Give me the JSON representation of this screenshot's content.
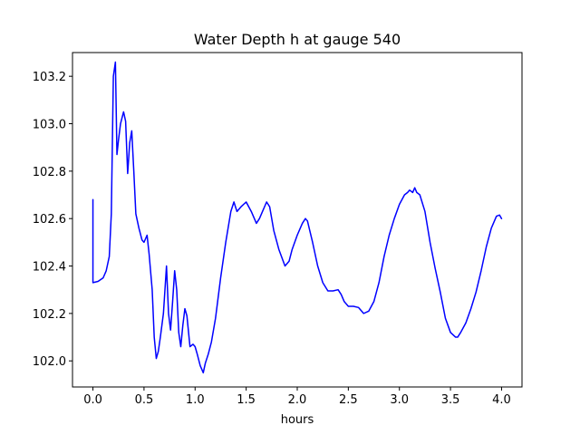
{
  "chart_data": {
    "type": "line",
    "title": "Water Depth h at gauge 540",
    "xlabel": "hours",
    "ylabel": "",
    "xlim": [
      -0.2,
      4.2
    ],
    "ylim": [
      101.89,
      103.3
    ],
    "x_ticks": [
      0.0,
      0.5,
      1.0,
      1.5,
      2.0,
      2.5,
      3.0,
      3.5,
      4.0
    ],
    "x_tick_labels": [
      "0.0",
      "0.5",
      "1.0",
      "1.5",
      "2.0",
      "2.5",
      "3.0",
      "3.5",
      "4.0"
    ],
    "y_ticks": [
      102.0,
      102.2,
      102.4,
      102.6,
      102.8,
      103.0,
      103.2
    ],
    "y_tick_labels": [
      "102.0",
      "102.2",
      "102.4",
      "102.6",
      "102.8",
      "103.0",
      "103.2"
    ],
    "grid": false,
    "series": [
      {
        "color": "#0000ff",
        "x": [
          0.0,
          0.0,
          0.05,
          0.1,
          0.13,
          0.16,
          0.18,
          0.2,
          0.22,
          0.235,
          0.25,
          0.27,
          0.3,
          0.32,
          0.34,
          0.36,
          0.38,
          0.4,
          0.42,
          0.45,
          0.48,
          0.5,
          0.53,
          0.55,
          0.58,
          0.6,
          0.62,
          0.64,
          0.66,
          0.69,
          0.72,
          0.74,
          0.76,
          0.78,
          0.8,
          0.82,
          0.84,
          0.86,
          0.88,
          0.9,
          0.92,
          0.95,
          0.98,
          1.0,
          1.02,
          1.05,
          1.08,
          1.1,
          1.13,
          1.16,
          1.2,
          1.25,
          1.3,
          1.35,
          1.38,
          1.41,
          1.45,
          1.5,
          1.55,
          1.6,
          1.63,
          1.66,
          1.7,
          1.73,
          1.77,
          1.82,
          1.88,
          1.92,
          1.95,
          2.0,
          2.05,
          2.08,
          2.1,
          2.15,
          2.2,
          2.25,
          2.3,
          2.35,
          2.4,
          2.43,
          2.46,
          2.5,
          2.55,
          2.6,
          2.65,
          2.7,
          2.75,
          2.8,
          2.85,
          2.9,
          2.95,
          3.0,
          3.05,
          3.08,
          3.1,
          3.13,
          3.15,
          3.17,
          3.2,
          3.25,
          3.3,
          3.35,
          3.4,
          3.45,
          3.5,
          3.55,
          3.57,
          3.6,
          3.65,
          3.7,
          3.75,
          3.8,
          3.85,
          3.9,
          3.95,
          3.98,
          4.0
        ],
        "y": [
          102.68,
          102.33,
          102.335,
          102.35,
          102.38,
          102.44,
          102.62,
          103.2,
          103.26,
          102.87,
          102.93,
          103.0,
          103.05,
          103.01,
          102.79,
          102.92,
          102.97,
          102.8,
          102.62,
          102.56,
          102.51,
          102.5,
          102.53,
          102.45,
          102.3,
          102.1,
          102.01,
          102.04,
          102.1,
          102.2,
          102.4,
          102.2,
          102.13,
          102.25,
          102.38,
          102.3,
          102.12,
          102.06,
          102.15,
          102.22,
          102.19,
          102.06,
          102.07,
          102.06,
          102.03,
          101.98,
          101.95,
          101.99,
          102.03,
          102.08,
          102.18,
          102.35,
          102.5,
          102.63,
          102.67,
          102.63,
          102.65,
          102.67,
          102.63,
          102.58,
          102.6,
          102.63,
          102.67,
          102.65,
          102.55,
          102.47,
          102.4,
          102.42,
          102.47,
          102.53,
          102.58,
          102.6,
          102.59,
          102.5,
          102.4,
          102.33,
          102.295,
          102.295,
          102.3,
          102.28,
          102.25,
          102.23,
          102.23,
          102.225,
          102.2,
          102.21,
          102.25,
          102.33,
          102.44,
          102.53,
          102.6,
          102.66,
          102.7,
          102.71,
          102.72,
          102.71,
          102.73,
          102.71,
          102.7,
          102.63,
          102.5,
          102.39,
          102.29,
          102.18,
          102.12,
          102.1,
          102.1,
          102.12,
          102.16,
          102.22,
          102.29,
          102.38,
          102.48,
          102.56,
          102.61,
          102.615,
          102.6
        ]
      }
    ]
  }
}
